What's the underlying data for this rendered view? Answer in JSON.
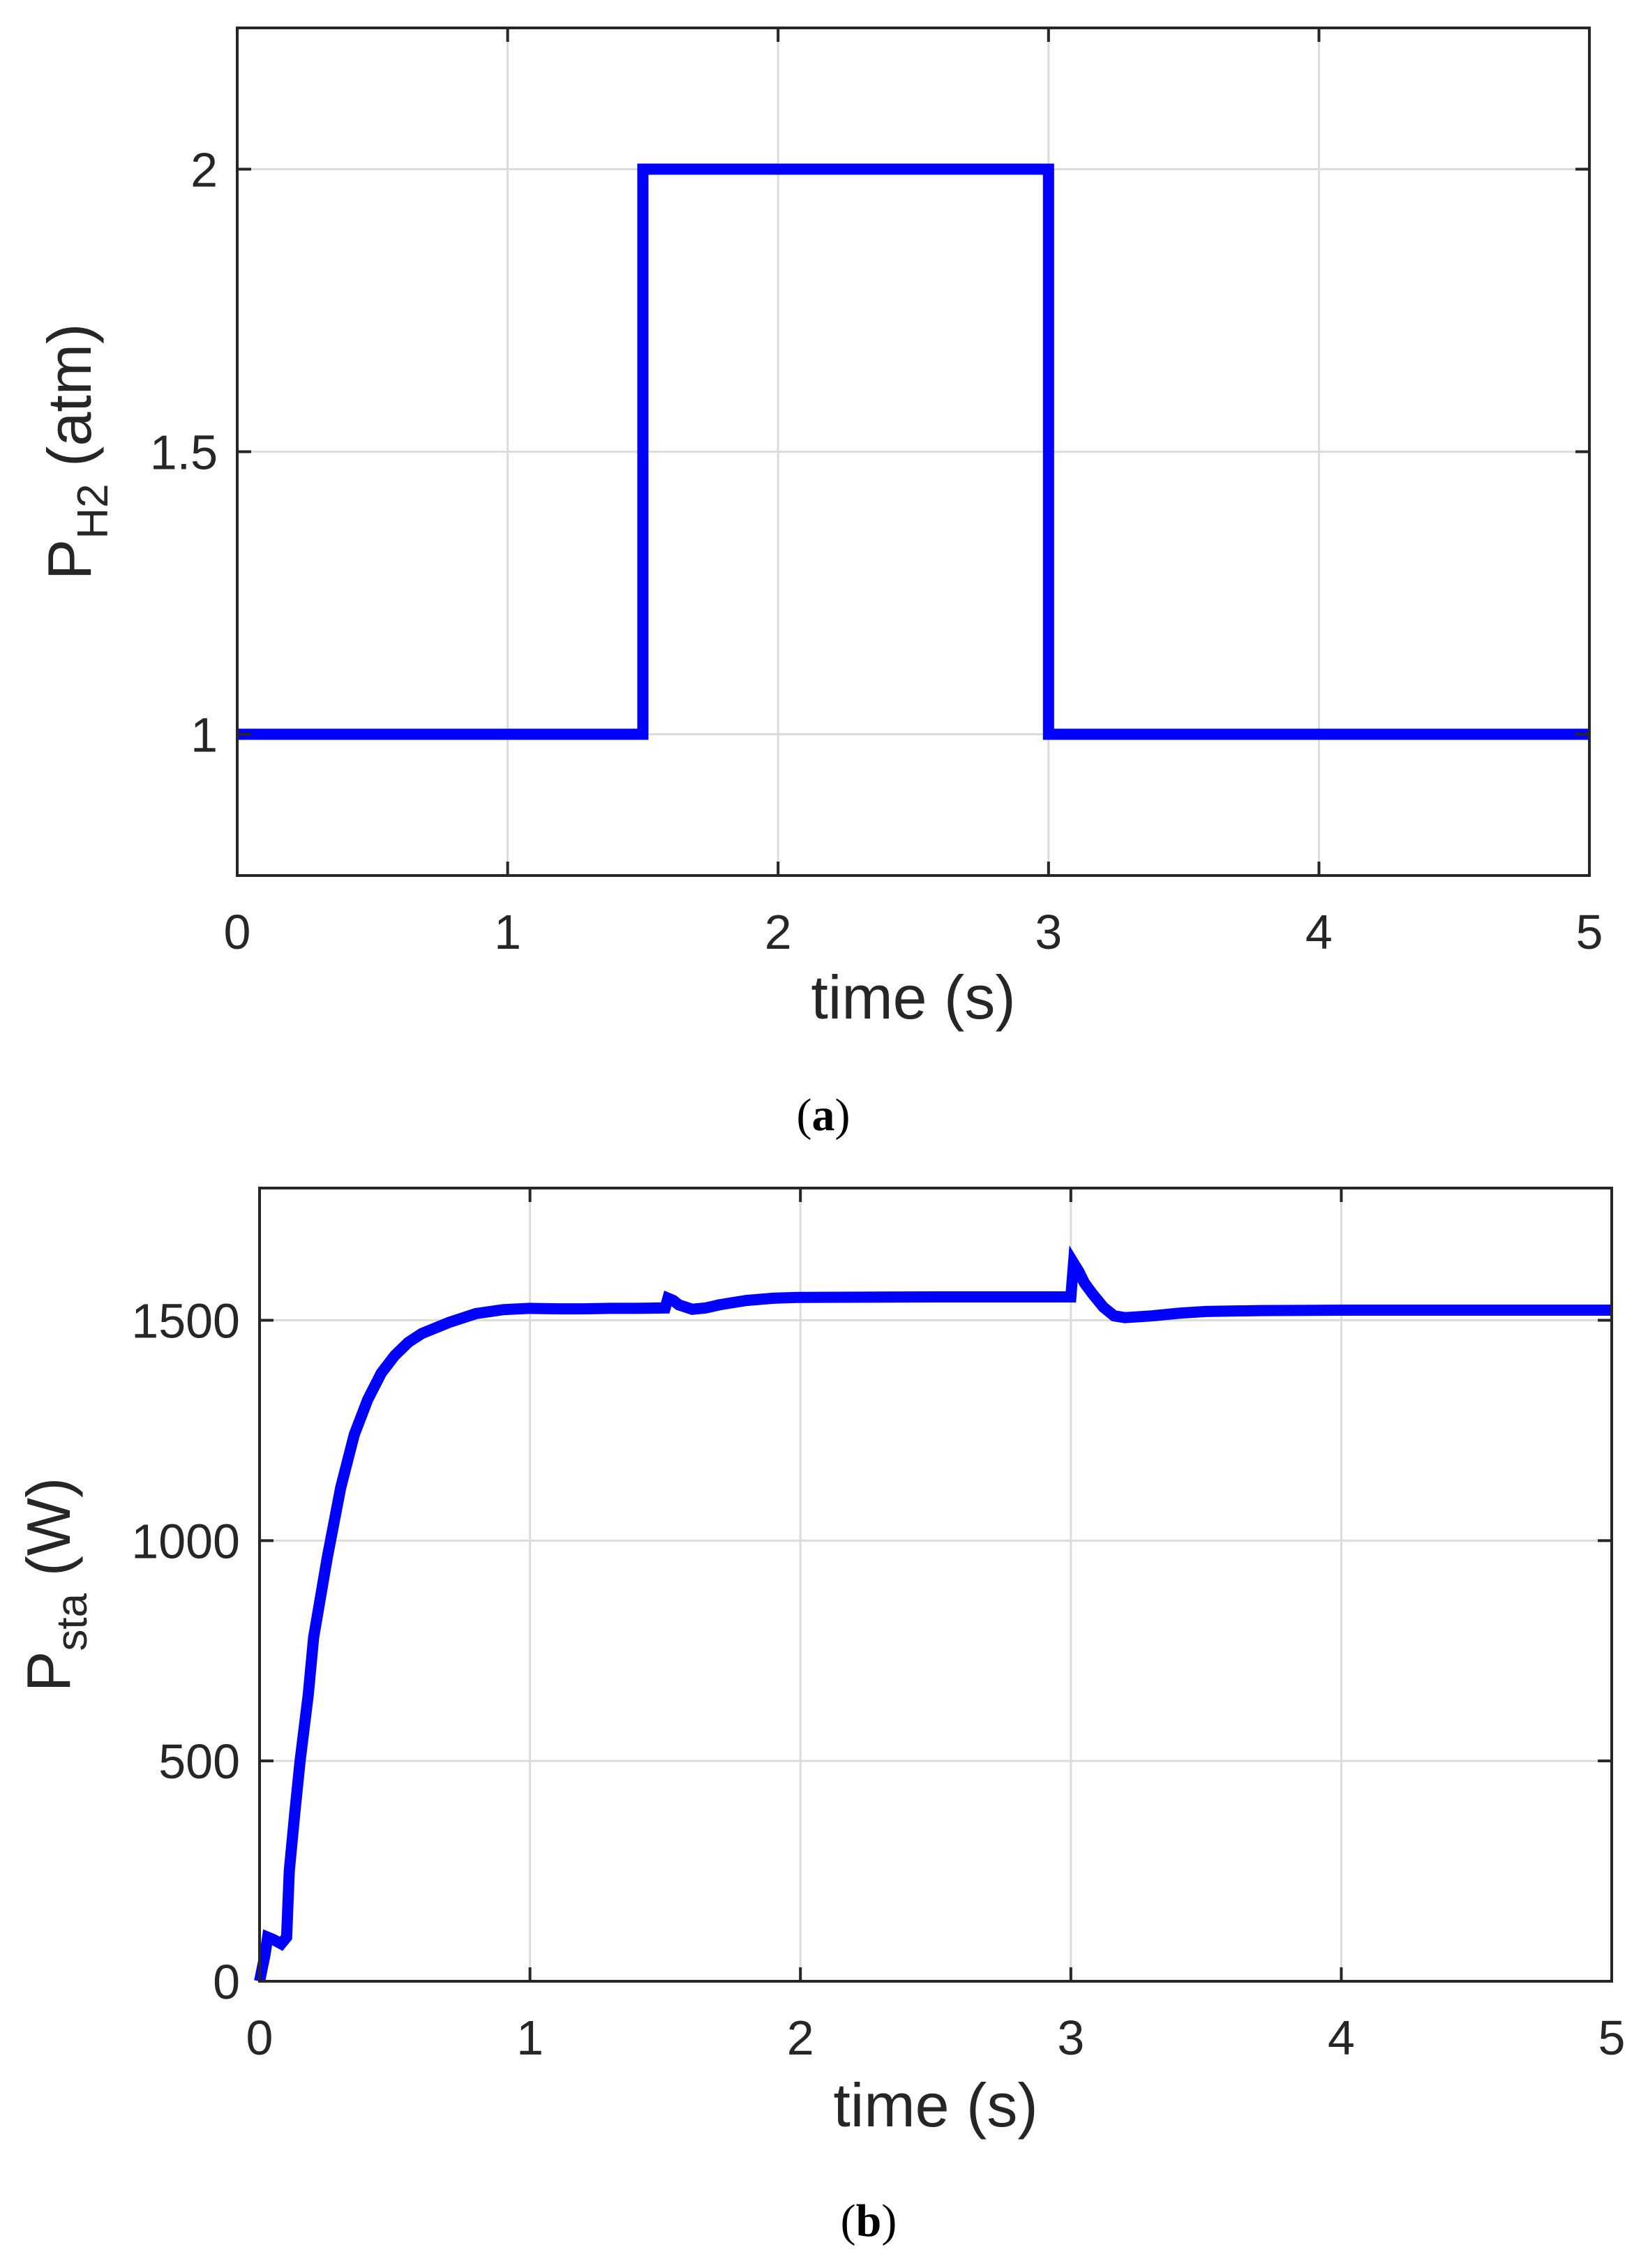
{
  "chart_data": [
    {
      "type": "line",
      "panel": "a",
      "caption_letter": "a",
      "xlabel": "time (s)",
      "ylabel_main": "P",
      "ylabel_sub": "H2",
      "ylabel_unit": " (atm)",
      "xlim": [
        0,
        5
      ],
      "ylim": [
        0.75,
        2.25
      ],
      "xticks": [
        0,
        1,
        2,
        3,
        4,
        5
      ],
      "xtick_labels": [
        "0",
        "1",
        "2",
        "3",
        "4",
        "5"
      ],
      "yticks": [
        1,
        1.5,
        2
      ],
      "ytick_labels": [
        "1",
        "1.5",
        "2"
      ],
      "grid": true,
      "colors": {
        "line": "#0000ff",
        "axes": "#262626",
        "grid": "#dcdcdc"
      },
      "series": [
        {
          "x": [
            0,
            1.5,
            1.5,
            3,
            3,
            5
          ],
          "y": [
            1,
            1,
            2,
            2,
            1,
            1
          ]
        }
      ]
    },
    {
      "type": "line",
      "panel": "b",
      "caption_letter": "b",
      "xlabel": "time (s)",
      "ylabel_main": "P",
      "ylabel_sub": "sta",
      "ylabel_unit": " (W)",
      "xlim": [
        0,
        5
      ],
      "ylim": [
        0,
        1800
      ],
      "xticks": [
        0,
        1,
        2,
        3,
        4,
        5
      ],
      "xtick_labels": [
        "0",
        "1",
        "2",
        "3",
        "4",
        "5"
      ],
      "yticks": [
        0,
        500,
        1000,
        1500
      ],
      "ytick_labels": [
        "0",
        "500",
        "1000",
        "1500"
      ],
      "grid": true,
      "colors": {
        "line": "#0000ff",
        "axes": "#262626",
        "grid": "#dcdcdc"
      },
      "series": [
        {
          "x": [
            0,
            0.02,
            0.03,
            0.05,
            0.08,
            0.1,
            0.11,
            0.13,
            0.15,
            0.18,
            0.2,
            0.25,
            0.3,
            0.35,
            0.4,
            0.45,
            0.5,
            0.55,
            0.6,
            0.7,
            0.8,
            0.9,
            1.0,
            1.1,
            1.2,
            1.3,
            1.4,
            1.5,
            1.51,
            1.53,
            1.55,
            1.6,
            1.65,
            1.7,
            1.8,
            1.9,
            2.0,
            2.5,
            2.98,
            3.0,
            3.01,
            3.03,
            3.05,
            3.08,
            3.12,
            3.16,
            3.2,
            3.3,
            3.4,
            3.5,
            3.7,
            4.0,
            4.5,
            5.0
          ],
          "y": [
            0,
            60,
            100,
            95,
            85,
            100,
            250,
            380,
            500,
            650,
            780,
            960,
            1120,
            1240,
            1320,
            1380,
            1420,
            1450,
            1470,
            1495,
            1515,
            1524,
            1527,
            1526,
            1526,
            1527,
            1527,
            1528,
            1550,
            1545,
            1535,
            1525,
            1528,
            1535,
            1545,
            1550,
            1552,
            1553,
            1553,
            1553,
            1630,
            1610,
            1585,
            1560,
            1530,
            1510,
            1506,
            1510,
            1516,
            1520,
            1522,
            1523,
            1523,
            1523
          ]
        }
      ]
    }
  ]
}
